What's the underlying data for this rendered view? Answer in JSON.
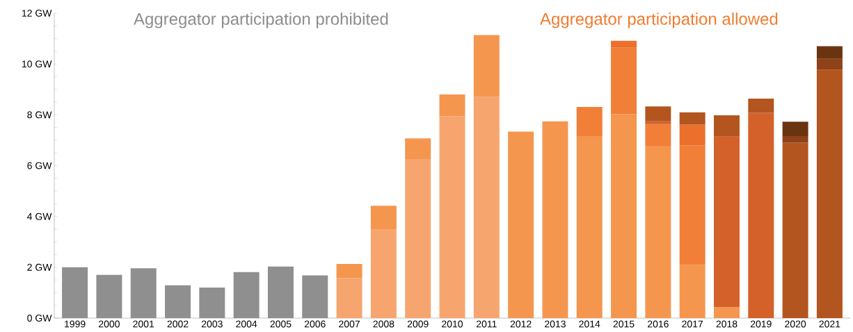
{
  "chart_data": {
    "type": "bar",
    "stacked": true,
    "annotations": [
      "Aggregator participation prohibited",
      "Aggregator participation allowed"
    ],
    "categories": [
      "1999",
      "2000",
      "2001",
      "2002",
      "2003",
      "2004",
      "2005",
      "2006",
      "2007",
      "2008",
      "2009",
      "2010",
      "2011",
      "2012",
      "2013",
      "2014",
      "2015",
      "2016",
      "2017",
      "2018",
      "2019",
      "2020",
      "2021"
    ],
    "series": [
      {
        "color": "#8f8f8f",
        "values": [
          2.0,
          1.7,
          1.96,
          1.29,
          1.2,
          1.81,
          2.03,
          1.68,
          null,
          null,
          null,
          null,
          null,
          null,
          null,
          null,
          null,
          null,
          null,
          null,
          null,
          null,
          null
        ]
      },
      {
        "color": "#f7a56e",
        "values": [
          null,
          null,
          null,
          null,
          null,
          null,
          null,
          null,
          1.57,
          3.48,
          6.26,
          7.95,
          8.71,
          null,
          null,
          null,
          null,
          null,
          null,
          null,
          null,
          null,
          null
        ]
      },
      {
        "color": "#f5964f",
        "values": [
          null,
          null,
          null,
          null,
          null,
          null,
          null,
          null,
          0.56,
          0.94,
          0.81,
          0.85,
          2.43,
          7.34,
          7.74,
          7.16,
          8.02,
          6.78,
          2.1,
          0.43,
          null,
          null,
          null
        ]
      },
      {
        "color": "#f27f38",
        "values": [
          null,
          null,
          null,
          null,
          null,
          null,
          null,
          null,
          null,
          null,
          null,
          null,
          null,
          null,
          null,
          1.15,
          2.62,
          0.85,
          4.7,
          null,
          null,
          null,
          null
        ]
      },
      {
        "color": "#ec6f2c",
        "values": [
          null,
          null,
          null,
          null,
          null,
          null,
          null,
          null,
          null,
          null,
          null,
          null,
          null,
          null,
          null,
          null,
          0.27,
          null,
          0.81,
          null,
          null,
          null,
          null
        ]
      },
      {
        "color": "#d4612a",
        "values": [
          null,
          null,
          null,
          null,
          null,
          null,
          null,
          null,
          null,
          null,
          null,
          null,
          null,
          null,
          null,
          null,
          null,
          0.11,
          null,
          6.71,
          8.08,
          null,
          null
        ]
      },
      {
        "color": "#b3551f",
        "values": [
          null,
          null,
          null,
          null,
          null,
          null,
          null,
          null,
          null,
          null,
          null,
          null,
          null,
          null,
          null,
          null,
          null,
          0.59,
          0.49,
          0.84,
          0.56,
          6.9,
          9.78
        ]
      },
      {
        "color": "#8f4118",
        "values": [
          null,
          null,
          null,
          null,
          null,
          null,
          null,
          null,
          null,
          null,
          null,
          null,
          null,
          null,
          null,
          null,
          null,
          null,
          null,
          null,
          null,
          0.26,
          0.42
        ]
      },
      {
        "color": "#6b3410",
        "values": [
          null,
          null,
          null,
          null,
          null,
          null,
          null,
          null,
          null,
          null,
          null,
          null,
          null,
          null,
          null,
          null,
          null,
          null,
          null,
          null,
          null,
          0.57,
          0.5
        ]
      }
    ],
    "ylim": [
      0,
      12
    ],
    "yticks": [
      {
        "value": 0,
        "label": "0 GW"
      },
      {
        "value": 0.5,
        "label": null
      },
      {
        "value": 1,
        "label": null
      },
      {
        "value": 1.5,
        "label": null
      },
      {
        "value": 2,
        "label": "2 GW"
      },
      {
        "value": 2.5,
        "label": null
      },
      {
        "value": 3,
        "label": null
      },
      {
        "value": 3.5,
        "label": null
      },
      {
        "value": 4,
        "label": "4 GW"
      },
      {
        "value": 4.5,
        "label": null
      },
      {
        "value": 5,
        "label": null
      },
      {
        "value": 5.5,
        "label": null
      },
      {
        "value": 6,
        "label": "6 GW"
      },
      {
        "value": 6.5,
        "label": null
      },
      {
        "value": 7,
        "label": null
      },
      {
        "value": 7.5,
        "label": null
      },
      {
        "value": 8,
        "label": "8 GW"
      },
      {
        "value": 8.5,
        "label": null
      },
      {
        "value": 9,
        "label": null
      },
      {
        "value": 9.5,
        "label": null
      },
      {
        "value": 10,
        "label": "10 GW"
      },
      {
        "value": 10.5,
        "label": null
      },
      {
        "value": 11,
        "label": null
      },
      {
        "value": 11.5,
        "label": null
      },
      {
        "value": 12,
        "label": "12 GW"
      }
    ],
    "grid": false
  }
}
